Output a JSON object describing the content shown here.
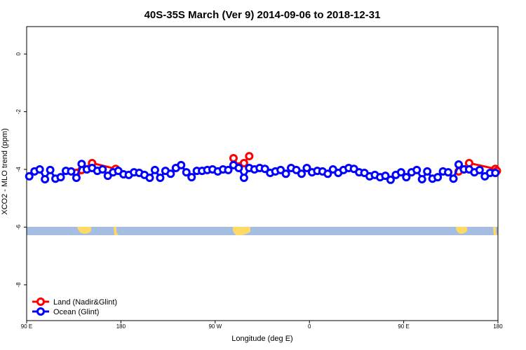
{
  "chart_data": {
    "type": "line",
    "title": "40S-35S March (Ver 9)   2014-09-06 to 2018-12-31",
    "x_label": "Longitude (deg E)",
    "y_label": "XCO2 - MLO trend (ppm)",
    "xlim": [
      90,
      540
    ],
    "xticks": [
      {
        "value": 90,
        "label": "90 E"
      },
      180,
      {
        "value": 270,
        "label": "90 W"
      },
      {
        "value": 360,
        "label": "0"
      },
      {
        "value": 450,
        "label": "90 E"
      },
      {
        "value": 540,
        "label": "180"
      }
    ],
    "ylim": [
      -9.24,
      0.95
    ],
    "yticks": [
      0,
      -2,
      -4,
      -6,
      -8
    ],
    "legend": "bottom-left",
    "series": [
      {
        "name": "Land (Nadir&Glint)",
        "color": "#ff0000",
        "x": [
          137.5,
          142.5,
          152.5,
          175,
          230,
          287.5,
          292.5,
          297.5,
          302.5,
          420,
          502.5,
          512.5,
          537.5,
          539
        ],
        "values": [
          -4.12,
          -4.02,
          -3.78,
          -3.98,
          null,
          -3.61,
          -3.9,
          -3.78,
          -3.54,
          null,
          -4.07,
          -3.78,
          -3.98,
          -4.05
        ]
      },
      {
        "name": "Ocean (Glint)",
        "color": "#0000ff",
        "x": [
          92.5,
          97.5,
          102.5,
          107.5,
          112.5,
          117.5,
          122.5,
          127.5,
          132.5,
          137.5,
          142.5,
          147.5,
          152.5,
          157.5,
          162.5,
          167.5,
          172.5,
          177.5,
          182.5,
          187.5,
          192.5,
          197.5,
          202.5,
          207.5,
          212.5,
          217.5,
          222.5,
          227.5,
          232.5,
          237.5,
          242.5,
          247.5,
          252.5,
          257.5,
          262.5,
          267.5,
          272.5,
          277.5,
          282.5,
          287.5,
          292.5,
          297.5,
          302.5,
          307.5,
          312.5,
          317.5,
          322.5,
          327.5,
          332.5,
          337.5,
          342.5,
          347.5,
          352.5,
          357.5,
          362.5,
          367.5,
          372.5,
          377.5,
          382.5,
          387.5,
          392.5,
          397.5,
          402.5,
          407.5,
          412.5,
          417.5,
          422.5,
          427.5,
          432.5,
          437.5,
          442.5,
          447.5,
          452.5,
          457.5,
          462.5,
          467.5,
          472.5,
          477.5,
          482.5,
          487.5,
          492.5,
          497.5,
          502.5,
          507.5,
          512.5,
          517.5,
          522.5,
          527.5,
          532.5,
          537.5
        ],
        "values": [
          -4.24,
          -4.07,
          -4.0,
          -4.34,
          -4.02,
          -4.32,
          -4.27,
          -4.05,
          -4.07,
          -4.29,
          -3.81,
          -4.0,
          -3.95,
          -4.05,
          -4.0,
          -4.22,
          -4.1,
          -4.05,
          -4.17,
          -4.19,
          -4.1,
          -4.12,
          -4.19,
          -4.29,
          -4.02,
          -4.29,
          -4.05,
          -4.15,
          -3.95,
          -3.85,
          -4.1,
          -4.27,
          -4.05,
          -4.05,
          -4.02,
          -4.0,
          -4.07,
          -4.0,
          -4.02,
          -3.85,
          -3.95,
          -4.29,
          -3.95,
          -4.0,
          -3.95,
          -3.98,
          -4.12,
          -4.07,
          -4.02,
          -4.15,
          -3.95,
          -4.02,
          -4.15,
          -3.95,
          -4.1,
          -4.05,
          -4.07,
          -4.15,
          -4.0,
          -4.12,
          -4.02,
          -3.95,
          -3.98,
          -4.1,
          -4.12,
          -4.24,
          -4.19,
          -4.27,
          -4.22,
          -4.36,
          -4.19,
          -4.1,
          -4.27,
          -4.1,
          -4.02,
          -4.34,
          -4.07,
          -4.32,
          -4.27,
          -4.07,
          -4.1,
          -4.32,
          -3.83,
          -4.0,
          -4.0,
          -4.1,
          -4.02,
          -4.24,
          -4.12,
          -4.12
        ]
      }
    ]
  }
}
